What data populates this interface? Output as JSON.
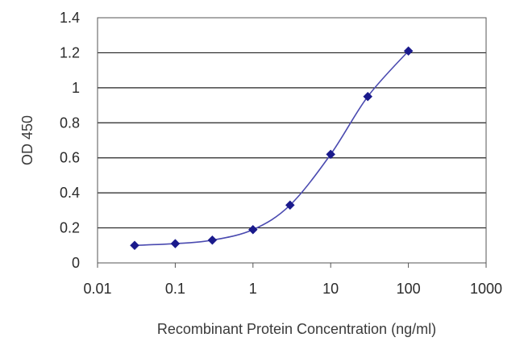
{
  "chart_data": {
    "type": "line",
    "title": "",
    "xlabel": "Recombinant Protein Concentration (ng/ml)",
    "ylabel": "OD 450",
    "xscale": "log",
    "xlim": [
      0.01,
      1000
    ],
    "ylim": [
      0,
      1.4
    ],
    "x_ticks": [
      0.01,
      0.1,
      1,
      10,
      100,
      1000
    ],
    "x_tick_labels": [
      "0.01",
      "0.1",
      "1",
      "10",
      "100",
      "1000"
    ],
    "y_ticks": [
      0,
      0.2,
      0.4,
      0.6,
      0.8,
      1,
      1.2,
      1.4
    ],
    "y_tick_labels": [
      "0",
      "0.2",
      "0.4",
      "0.6",
      "0.8",
      "1",
      "1.2",
      "1.4"
    ],
    "grid": "horizontal",
    "legend": "none",
    "series": [
      {
        "x": [
          0.03,
          0.1,
          0.3,
          1,
          3,
          10,
          30,
          100
        ],
        "y": [
          0.1,
          0.11,
          0.13,
          0.19,
          0.33,
          0.62,
          0.95,
          1.21
        ],
        "color": "#1a1a8c",
        "marker": "diamond"
      }
    ]
  }
}
